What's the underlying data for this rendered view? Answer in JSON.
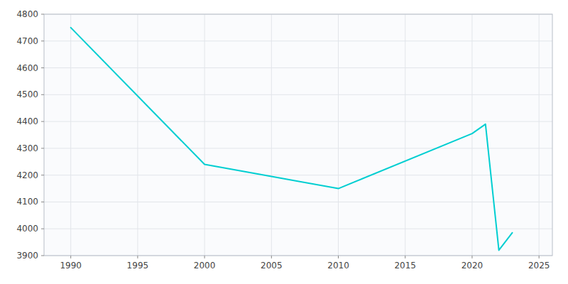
{
  "chart_data": {
    "type": "line",
    "x": [
      1990,
      2000,
      2005,
      2010,
      2020,
      2021,
      2022,
      2023
    ],
    "values": [
      4750,
      4240,
      4195,
      4150,
      4355,
      4390,
      3920,
      3985
    ],
    "color": "#00CED1",
    "xlim": [
      1988,
      2026
    ],
    "ylim": [
      3900,
      4800
    ],
    "xticks": [
      1990,
      1995,
      2000,
      2005,
      2010,
      2015,
      2020,
      2025
    ],
    "yticks": [
      3900,
      4000,
      4100,
      4200,
      4300,
      4400,
      4500,
      4600,
      4700,
      4800
    ],
    "grid": true
  }
}
